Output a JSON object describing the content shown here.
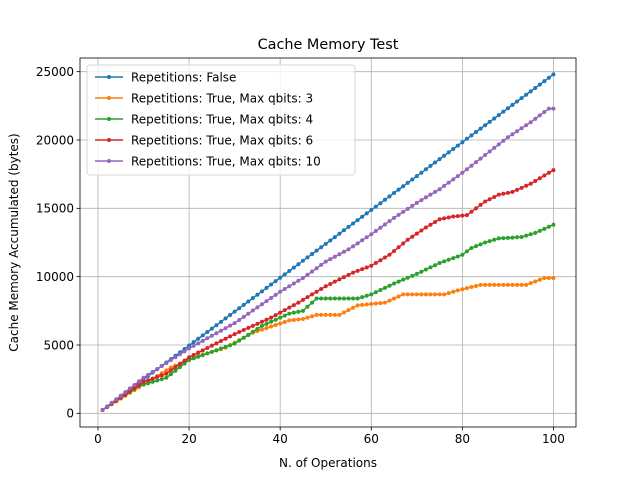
{
  "chart_data": {
    "type": "line",
    "title": "Cache Memory Test",
    "xlabel": "N. of Operations",
    "ylabel": "Cache Memory Accumulated (bytes)",
    "xlim": [
      -3.95,
      104.95
    ],
    "ylim": [
      -1000,
      26000
    ],
    "xticks": [
      0,
      20,
      40,
      60,
      80,
      100
    ],
    "yticks": [
      0,
      5000,
      10000,
      15000,
      20000,
      25000
    ],
    "grid": true,
    "legend_position": "top-left",
    "x_range": [
      1,
      100
    ],
    "series": [
      {
        "name": "Repetitions: False",
        "color": "#1f77b4",
        "points": [
          [
            1,
            248
          ],
          [
            100,
            24800
          ]
        ]
      },
      {
        "name": "Repetitions: True, Max qbits: 3",
        "color": "#ff7f0e",
        "points": [
          [
            1,
            248
          ],
          [
            8,
            1700
          ],
          [
            16,
            3350
          ],
          [
            22,
            4200
          ],
          [
            28,
            4800
          ],
          [
            34,
            5900
          ],
          [
            38,
            6350
          ],
          [
            42,
            6800
          ],
          [
            45,
            6900
          ],
          [
            48,
            7200
          ],
          [
            53,
            7200
          ],
          [
            57,
            7900
          ],
          [
            63,
            8100
          ],
          [
            67,
            8700
          ],
          [
            76,
            8700
          ],
          [
            79,
            9000
          ],
          [
            84,
            9400
          ],
          [
            94,
            9400
          ],
          [
            98,
            9900
          ],
          [
            100,
            9900
          ]
        ]
      },
      {
        "name": "Repetitions: True, Max qbits: 4",
        "color": "#2ca02c",
        "points": [
          [
            1,
            248
          ],
          [
            9,
            2000
          ],
          [
            15,
            2600
          ],
          [
            20,
            3900
          ],
          [
            25,
            4500
          ],
          [
            30,
            5100
          ],
          [
            36,
            6400
          ],
          [
            42,
            7300
          ],
          [
            45,
            7500
          ],
          [
            48,
            8400
          ],
          [
            57,
            8400
          ],
          [
            60,
            8700
          ],
          [
            65,
            9500
          ],
          [
            70,
            10200
          ],
          [
            75,
            11000
          ],
          [
            80,
            11600
          ],
          [
            82,
            12100
          ],
          [
            85,
            12500
          ],
          [
            88,
            12800
          ],
          [
            93,
            12900
          ],
          [
            96,
            13200
          ],
          [
            100,
            13800
          ]
        ]
      },
      {
        "name": "Repetitions: True, Max qbits: 6",
        "color": "#d62728",
        "points": [
          [
            1,
            248
          ],
          [
            10,
            2300
          ],
          [
            15,
            2900
          ],
          [
            20,
            4100
          ],
          [
            30,
            5800
          ],
          [
            38,
            7000
          ],
          [
            44,
            8100
          ],
          [
            50,
            9300
          ],
          [
            56,
            10300
          ],
          [
            60,
            10800
          ],
          [
            64,
            11600
          ],
          [
            68,
            12700
          ],
          [
            72,
            13600
          ],
          [
            75,
            14200
          ],
          [
            78,
            14400
          ],
          [
            81,
            14500
          ],
          [
            85,
            15500
          ],
          [
            88,
            16000
          ],
          [
            91,
            16200
          ],
          [
            95,
            16800
          ],
          [
            98,
            17400
          ],
          [
            100,
            17800
          ]
        ]
      },
      {
        "name": "Repetitions: True, Max qbits: 10",
        "color": "#9467bd",
        "points": [
          [
            1,
            248
          ],
          [
            10,
            2600
          ],
          [
            20,
            4750
          ],
          [
            30,
            6600
          ],
          [
            40,
            8900
          ],
          [
            45,
            9900
          ],
          [
            50,
            11100
          ],
          [
            55,
            12000
          ],
          [
            60,
            13100
          ],
          [
            65,
            14300
          ],
          [
            70,
            15400
          ],
          [
            75,
            16400
          ],
          [
            80,
            17600
          ],
          [
            85,
            18900
          ],
          [
            90,
            20200
          ],
          [
            95,
            21300
          ],
          [
            99,
            22300
          ],
          [
            100,
            22300
          ]
        ]
      }
    ]
  }
}
